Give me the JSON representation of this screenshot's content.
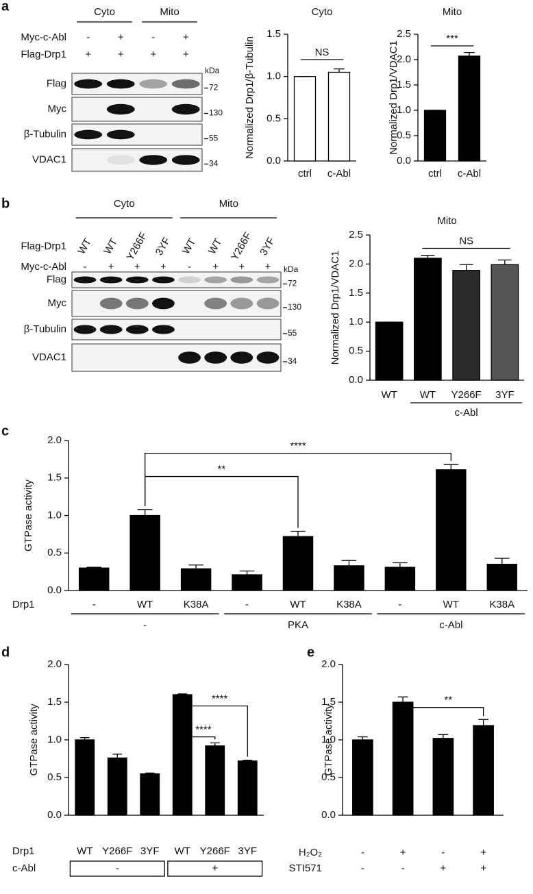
{
  "panel_labels": [
    "a",
    "b",
    "c",
    "d",
    "e"
  ],
  "blots": [
    {
      "groups": [
        {
          "label": "Cyto",
          "lanes": [
            0,
            1
          ]
        },
        {
          "label": "Mito",
          "lanes": [
            2,
            3
          ]
        }
      ],
      "condition_rows": [
        {
          "label": "Myc-c-Abl",
          "values": [
            "-",
            "+",
            "-",
            "+"
          ]
        },
        {
          "label": "Flag-Drp1",
          "values": [
            "+",
            "+",
            "+",
            "+"
          ]
        }
      ],
      "bands": [
        "Flag",
        "Myc",
        "β-Tubulin",
        "VDAC1"
      ],
      "marker_unit": "kDa",
      "markers": [
        72,
        130,
        55,
        34
      ]
    },
    {
      "groups": [
        {
          "label": "Cyto",
          "lanes": [
            0,
            3
          ]
        },
        {
          "label": "Mito",
          "lanes": [
            4,
            7
          ]
        }
      ],
      "condition_rows": [
        {
          "label": "Flag-Drp1",
          "values": [
            "WT",
            "WT",
            "Y266F",
            "3YF",
            "WT",
            "WT",
            "Y266F",
            "3YF"
          ]
        },
        {
          "label": "Myc-c-Abl",
          "values": [
            "-",
            "+",
            "+",
            "+",
            "-",
            "+",
            "+",
            "+"
          ]
        }
      ],
      "bands": [
        "Flag",
        "Myc",
        "β-Tubulin",
        "VDAC1"
      ],
      "marker_unit": "kDa",
      "markers": [
        72,
        130,
        55,
        34
      ]
    }
  ],
  "chart_data": [
    {
      "type": "bar",
      "title": "Cyto",
      "ylabel": "Normalized Drp1/β-Tubulin",
      "categories": [
        "ctrl",
        "c-Abl"
      ],
      "values": [
        1.0,
        1.05
      ],
      "errors": [
        0,
        0.04
      ],
      "colors": [
        "#ffffff",
        "#ffffff"
      ],
      "edgecolor": "#000000",
      "ylim": [
        0,
        1.5
      ],
      "yticks": [
        {
          "value": 0,
          "label": "0.0"
        },
        0.5,
        {
          "value": 1,
          "label": "1.0"
        },
        1.5
      ],
      "annotations": [
        {
          "label": "NS",
          "between": [
            0,
            1
          ]
        }
      ]
    },
    {
      "type": "bar",
      "title": "Mito",
      "ylabel": "Normalized Drp1/VDAC1",
      "categories": [
        "ctrl",
        "c-Abl"
      ],
      "values": [
        1.0,
        2.07
      ],
      "errors": [
        0,
        0.07
      ],
      "colors": [
        "#000000",
        "#000000"
      ],
      "edgecolor": "#000000",
      "ylim": [
        0,
        2.5
      ],
      "yticks": [
        {
          "value": 0,
          "label": "0.0"
        },
        0.5,
        {
          "value": 1,
          "label": "1.0"
        },
        1.5,
        {
          "value": 2,
          "label": "2.0"
        },
        2.5
      ],
      "annotations": [
        {
          "label": "***",
          "between": [
            0,
            1
          ]
        }
      ]
    },
    {
      "type": "bar",
      "title": "Mito",
      "ylabel": "Normalized Drp1/VDAC1",
      "categories": [
        "WT",
        "WT",
        "Y266F",
        "3YF"
      ],
      "values": [
        1.0,
        2.1,
        1.89,
        1.99
      ],
      "errors": [
        0,
        0.05,
        0.1,
        0.08
      ],
      "colors": [
        "#000000",
        "#000000",
        "#2b2b2b",
        "#555555"
      ],
      "edgecolor": "#000000",
      "ylim": [
        0,
        2.5
      ],
      "yticks": [
        {
          "value": 0,
          "label": "0.0"
        },
        0.5,
        {
          "value": 1,
          "label": "1.0"
        },
        1.5,
        {
          "value": 2,
          "label": "2.0"
        },
        2.5
      ],
      "groups": [
        {
          "label": "c-Abl",
          "span": [
            1,
            3
          ]
        }
      ],
      "annotations": [
        {
          "label": "NS",
          "between": [
            1,
            3
          ]
        }
      ]
    },
    {
      "type": "bar",
      "ylabel": "GTPase activity",
      "row_label": "Drp1",
      "categories": [
        "-",
        "WT",
        "K38A",
        "-",
        "WT",
        "K38A",
        "-",
        "WT",
        "K38A"
      ],
      "values": [
        0.3,
        1.0,
        0.29,
        0.21,
        0.72,
        0.33,
        0.31,
        1.61,
        0.35
      ],
      "errors": [
        0.01,
        0.08,
        0.05,
        0.05,
        0.07,
        0.07,
        0.06,
        0.07,
        0.08
      ],
      "colors": [
        "#000000",
        "#000000",
        "#000000",
        "#000000",
        "#000000",
        "#000000",
        "#000000",
        "#000000",
        "#000000"
      ],
      "edgecolor": "#000000",
      "ylim": [
        0,
        2
      ],
      "yticks": [
        {
          "value": 0,
          "label": "0.0"
        },
        0.5,
        {
          "value": 1,
          "label": "1.0"
        },
        1.5,
        {
          "value": 2,
          "label": "2.0"
        }
      ],
      "groups": [
        {
          "label": "-",
          "span": [
            0,
            2
          ]
        },
        {
          "label": "PKA",
          "span": [
            3,
            5
          ]
        },
        {
          "label": "c-Abl",
          "span": [
            6,
            8
          ]
        }
      ],
      "annotations": [
        {
          "label": "**",
          "between": [
            1,
            4
          ]
        },
        {
          "label": "****",
          "between": [
            1,
            7
          ]
        }
      ]
    },
    {
      "type": "bar",
      "ylabel": "GTPase activity",
      "row_label": "Drp1",
      "categories": [
        "WT",
        "Y266F",
        "3YF",
        "WT",
        "Y266F",
        "3YF"
      ],
      "values": [
        1.0,
        0.76,
        0.55,
        1.6,
        0.92,
        0.72
      ],
      "errors": [
        0.03,
        0.05,
        0.01,
        0.01,
        0.04,
        0.01
      ],
      "colors": [
        "#000000",
        "#000000",
        "#000000",
        "#000000",
        "#000000",
        "#000000"
      ],
      "edgecolor": "#000000",
      "ylim": [
        0,
        2
      ],
      "yticks": [
        {
          "value": 0,
          "label": "0.0"
        },
        0.5,
        {
          "value": 1,
          "label": "1.0"
        },
        1.5,
        {
          "value": 2,
          "label": "2.0"
        }
      ],
      "group_label": "c-Abl",
      "groups": [
        {
          "label": "-",
          "span": [
            0,
            2
          ]
        },
        {
          "label": "+",
          "span": [
            3,
            5
          ]
        }
      ],
      "annotations": [
        {
          "label": "****",
          "between": [
            3,
            5
          ]
        },
        {
          "label": "****",
          "between": [
            3,
            4
          ]
        }
      ]
    },
    {
      "type": "bar",
      "ylabel": "GTPase activity",
      "values": [
        1.0,
        1.5,
        1.02,
        1.19
      ],
      "errors": [
        0.04,
        0.07,
        0.05,
        0.08
      ],
      "colors": [
        "#000000",
        "#000000",
        "#000000",
        "#000000"
      ],
      "edgecolor": "#000000",
      "ylim": [
        0,
        2
      ],
      "yticks": [
        {
          "value": 0,
          "label": "0.0"
        },
        0.5,
        {
          "value": 1,
          "label": "1.0"
        },
        1.5,
        {
          "value": 2,
          "label": "2.0"
        }
      ],
      "rows": [
        {
          "label": "H₂O₂",
          "values": [
            "-",
            "+",
            "-",
            "+"
          ]
        },
        {
          "label": "STI571",
          "values": [
            "-",
            "-",
            "+",
            "+"
          ]
        }
      ],
      "annotations": [
        {
          "label": "**",
          "between": [
            1,
            3
          ]
        }
      ]
    }
  ]
}
